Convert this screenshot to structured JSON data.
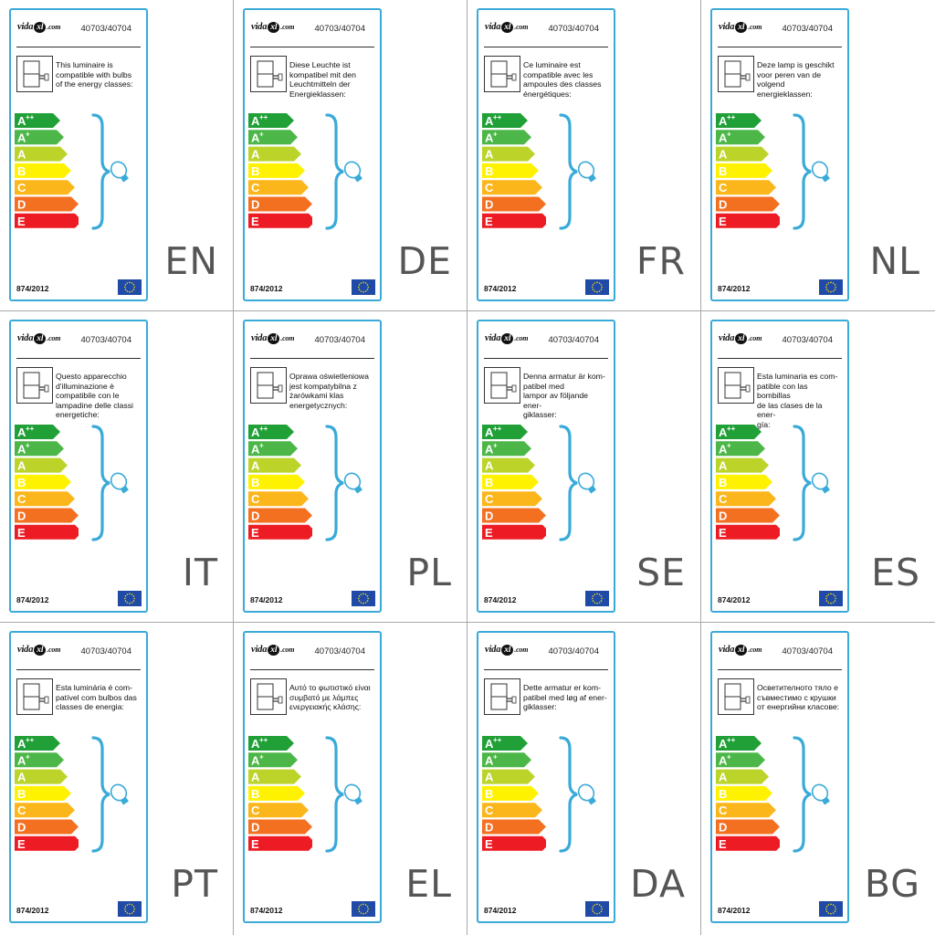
{
  "common": {
    "brand": {
      "pre": "vida",
      "xl": "xl",
      "post": ".com"
    },
    "code": "40703/40704",
    "regulation": "874/2012",
    "classes": [
      {
        "text": "A",
        "sup": "++",
        "color": "#21a038"
      },
      {
        "text": "A",
        "sup": "+",
        "color": "#4cb748"
      },
      {
        "text": "A",
        "sup": "",
        "color": "#bcd42a"
      },
      {
        "text": "B",
        "sup": "",
        "color": "#fff200"
      },
      {
        "text": "C",
        "sup": "",
        "color": "#fbb61b"
      },
      {
        "text": "D",
        "sup": "",
        "color": "#f37021"
      },
      {
        "text": "E",
        "sup": "",
        "color": "#ed1c24"
      }
    ],
    "accent": "#3aaad8"
  },
  "labels": [
    {
      "lang": "EN",
      "text": "This luminaire is\ncompatible with bulbs\nof the energy classes:"
    },
    {
      "lang": "DE",
      "text": "Diese Leuchte ist\nkompatibel mit den\nLeuchtmitteln der\nEnergieklassen:"
    },
    {
      "lang": "FR",
      "text": "Ce luminaire est\ncompatible avec les\nampoules des classes\nénergétiques:"
    },
    {
      "lang": "NL",
      "text": "Deze lamp is geschikt\nvoor peren van de\nvolgend energieklassen:"
    },
    {
      "lang": "IT",
      "text": "Questo apparecchio\nd'illuminazione è\ncompatibile con le\nlampadine delle classi\nenergetiche:"
    },
    {
      "lang": "PL",
      "text": "Oprawa oświetleniowa\njest kompatybilna z\nżarówkami klas\nenergetycznych:"
    },
    {
      "lang": "SE",
      "text": "Denna armatur är kom-\npatibel med\nlampor av följande ener-\ngiklasser:"
    },
    {
      "lang": "ES",
      "text": "Esta luminaria es com-\npatible con las bombillas\nde las clases de la ener-\ngía:"
    },
    {
      "lang": "PT",
      "text": "Esta luminária é com-\npatível com bulbos das\nclasses de energia:"
    },
    {
      "lang": "EL",
      "text": "Αυτό το φωτιστικό είναι\nσυμβατό με λάμπες\nενεργειακής κλάσης:"
    },
    {
      "lang": "DA",
      "text": "Dette armatur er kom-\npatibel med løg af ener-\ngiklasser:"
    },
    {
      "lang": "BG",
      "text": "Осветителното тяло е\nсъвместимо с крушки\nот енергийни класове:"
    }
  ]
}
